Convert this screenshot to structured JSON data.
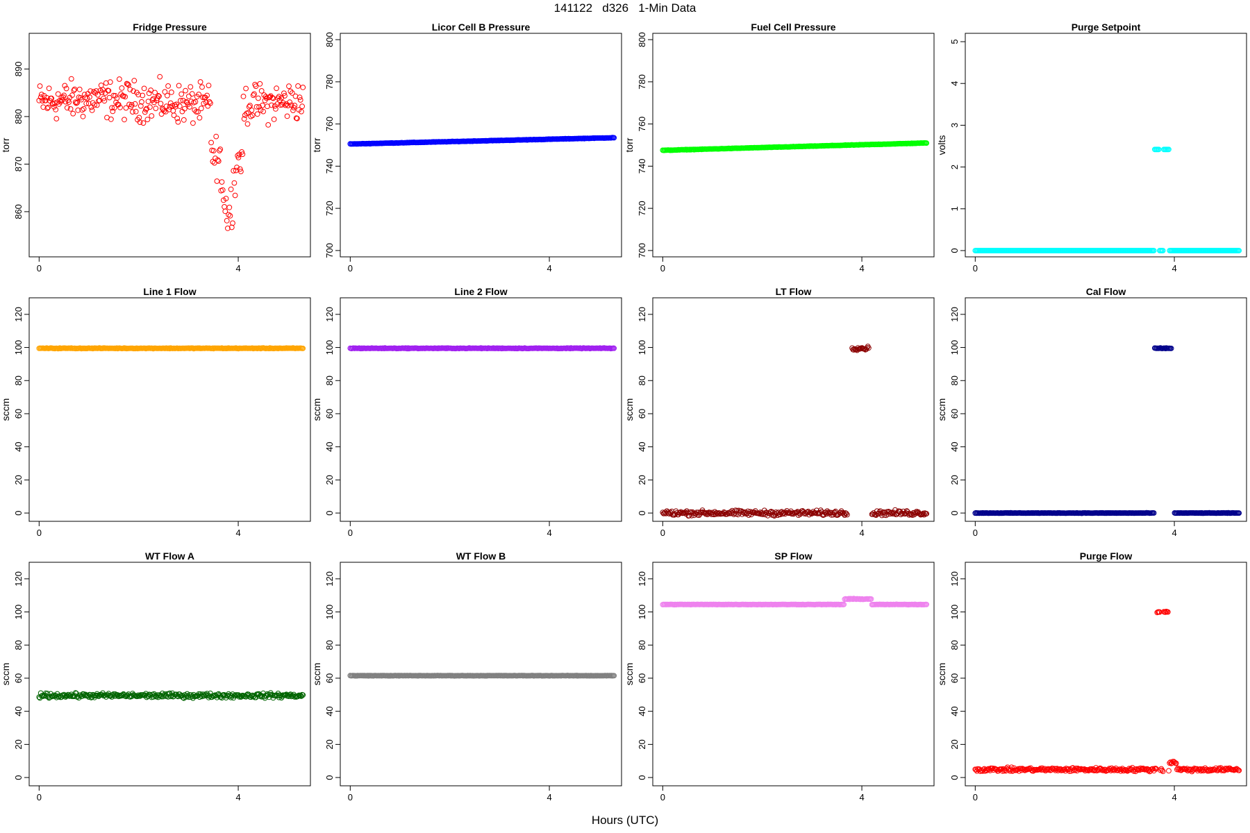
{
  "figure": {
    "title": "141122   d326   1-Min Data",
    "xlabel": "Hours (UTC)"
  },
  "chart_data": [
    {
      "type": "scatter",
      "title": "Fridge Pressure",
      "ylabel": "torr",
      "color": "#ff0000",
      "ylim": [
        850.5,
        897.5
      ],
      "yticks": [
        860,
        870,
        880,
        890
      ],
      "xlim": [
        -0.2,
        5.45
      ],
      "xticks": [
        0,
        4
      ],
      "pattern": "fridge",
      "x_range": [
        0,
        5.3
      ],
      "series": [
        {
          "values_summary": "scatter 875-892 torr, dip to ~852 near 3.8 h"
        }
      ]
    },
    {
      "type": "scatter",
      "title": "Licor Cell B Pressure",
      "ylabel": "torr",
      "color": "#0000ff",
      "ylim": [
        697,
        803
      ],
      "yticks": [
        700,
        720,
        740,
        760,
        780,
        800
      ],
      "xlim": [
        -0.2,
        5.45
      ],
      "xticks": [
        0,
        4
      ],
      "pattern": "linear",
      "x_range": [
        0,
        5.3
      ],
      "y_from": 750.5,
      "y_to": 753.5
    },
    {
      "type": "scatter",
      "title": "Fuel Cell Pressure",
      "ylabel": "torr",
      "color": "#00ff00",
      "ylim": [
        697,
        803
      ],
      "yticks": [
        700,
        720,
        740,
        760,
        780,
        800
      ],
      "xlim": [
        -0.2,
        5.45
      ],
      "xticks": [
        0,
        4
      ],
      "pattern": "linear",
      "x_range": [
        0,
        5.3
      ],
      "y_from": 747.5,
      "y_to": 751
    },
    {
      "type": "scatter",
      "title": "Purge Setpoint",
      "ylabel": "volts",
      "color": "#00ffff",
      "ylim": [
        -0.15,
        5.2
      ],
      "yticks": [
        0,
        1,
        2,
        3,
        4,
        5
      ],
      "xlim": [
        -0.2,
        5.45
      ],
      "xticks": [
        0,
        4
      ],
      "pattern": "step",
      "x_range": [
        0,
        5.3
      ],
      "base": 0,
      "noise": 0,
      "step_value": 2.42,
      "step_windows": [
        [
          3.6,
          3.7
        ],
        [
          3.78,
          3.9
        ]
      ]
    },
    {
      "type": "scatter",
      "title": "Line 1 Flow",
      "ylabel": "sccm",
      "color": "#ffa500",
      "ylim": [
        -5,
        130
      ],
      "yticks": [
        0,
        20,
        40,
        60,
        80,
        100,
        120
      ],
      "xlim": [
        -0.2,
        5.45
      ],
      "xticks": [
        0,
        4
      ],
      "pattern": "flat",
      "x_range": [
        0,
        5.3
      ],
      "base": 99.5,
      "noise": 0.3
    },
    {
      "type": "scatter",
      "title": "Line 2 Flow",
      "ylabel": "sccm",
      "color": "#a020f0",
      "ylim": [
        -5,
        130
      ],
      "yticks": [
        0,
        20,
        40,
        60,
        80,
        100,
        120
      ],
      "xlim": [
        -0.2,
        5.45
      ],
      "xticks": [
        0,
        4
      ],
      "pattern": "flat",
      "x_range": [
        0,
        5.3
      ],
      "base": 99.5,
      "noise": 0.3
    },
    {
      "type": "scatter",
      "title": "LT Flow",
      "ylabel": "sccm",
      "color": "#8b0000",
      "ylim": [
        -5,
        130
      ],
      "yticks": [
        0,
        20,
        40,
        60,
        80,
        100,
        120
      ],
      "xlim": [
        -0.2,
        5.45
      ],
      "xticks": [
        0,
        4
      ],
      "pattern": "step",
      "x_range": [
        0,
        5.3
      ],
      "base": 0,
      "noise": 2.2,
      "step_value": 99.5,
      "step_noise": 1.5,
      "step_windows": [
        [
          3.8,
          4.15
        ]
      ],
      "gap_windows": [
        [
          3.72,
          3.8
        ],
        [
          4.15,
          4.2
        ]
      ]
    },
    {
      "type": "scatter",
      "title": "Cal Flow",
      "ylabel": "sccm",
      "color": "#00008b",
      "ylim": [
        -5,
        130
      ],
      "yticks": [
        0,
        20,
        40,
        60,
        80,
        100,
        120
      ],
      "xlim": [
        -0.2,
        5.45
      ],
      "xticks": [
        0,
        4
      ],
      "pattern": "step",
      "x_range": [
        0,
        5.3
      ],
      "base": 0,
      "noise": 0.2,
      "step_value": 99.5,
      "step_noise": 0.3,
      "step_windows": [
        [
          3.6,
          3.95
        ]
      ],
      "gap_windows": [
        [
          3.95,
          4.0
        ]
      ]
    },
    {
      "type": "scatter",
      "title": "WT Flow A",
      "ylabel": "sccm",
      "color": "#006400",
      "ylim": [
        -5,
        130
      ],
      "yticks": [
        0,
        20,
        40,
        60,
        80,
        100,
        120
      ],
      "xlim": [
        -0.2,
        5.45
      ],
      "xticks": [
        0,
        4
      ],
      "pattern": "flat",
      "x_range": [
        0,
        5.3
      ],
      "base": 49.5,
      "noise": 2.0
    },
    {
      "type": "scatter",
      "title": "WT Flow B",
      "ylabel": "sccm",
      "color": "#808080",
      "ylim": [
        -5,
        130
      ],
      "yticks": [
        0,
        20,
        40,
        60,
        80,
        100,
        120
      ],
      "xlim": [
        -0.2,
        5.45
      ],
      "xticks": [
        0,
        4
      ],
      "pattern": "flat",
      "x_range": [
        0,
        5.3
      ],
      "base": 61.5,
      "noise": 0.2
    },
    {
      "type": "scatter",
      "title": "SP Flow",
      "ylabel": "sccm",
      "color": "#ee82ee",
      "ylim": [
        -5,
        130
      ],
      "yticks": [
        0,
        20,
        40,
        60,
        80,
        100,
        120
      ],
      "xlim": [
        -0.2,
        5.45
      ],
      "xticks": [
        0,
        4
      ],
      "pattern": "step",
      "x_range": [
        0,
        5.3
      ],
      "base": 104.5,
      "noise": 0.2,
      "step_value": 107.8,
      "step_noise": 0.4,
      "step_windows": [
        [
          3.65,
          4.2
        ]
      ]
    },
    {
      "type": "scatter",
      "title": "Purge Flow",
      "ylabel": "sccm",
      "color": "#ff0000",
      "ylim": [
        -5,
        130
      ],
      "yticks": [
        0,
        20,
        40,
        60,
        80,
        100,
        120
      ],
      "xlim": [
        -0.2,
        5.45
      ],
      "xticks": [
        0,
        4
      ],
      "pattern": "purge",
      "x_range": [
        0,
        5.3
      ],
      "base": 4.8,
      "noise": 1.6,
      "step_value": 100,
      "step_noise": 0.6,
      "step_windows": [
        [
          3.65,
          3.72
        ],
        [
          3.78,
          3.88
        ]
      ]
    }
  ]
}
